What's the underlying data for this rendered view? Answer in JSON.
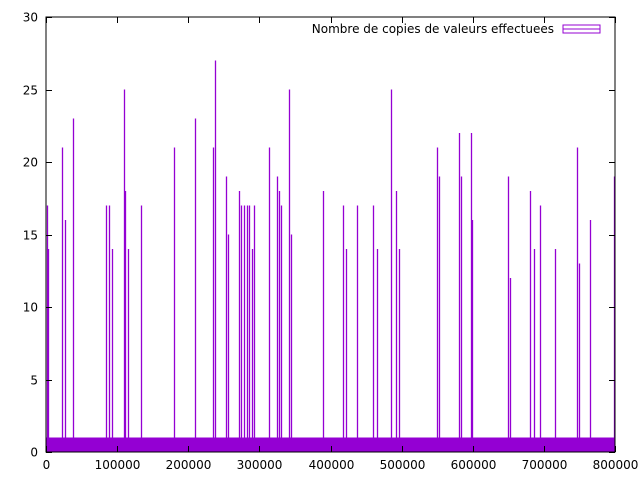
{
  "chart_data": {
    "type": "impulse",
    "title": "",
    "xlabel": "",
    "ylabel": "",
    "xlim": [
      0,
      800000
    ],
    "ylim": [
      0,
      30
    ],
    "x_ticks": [
      0,
      100000,
      200000,
      300000,
      400000,
      500000,
      600000,
      700000,
      800000
    ],
    "y_ticks": [
      0,
      5,
      10,
      15,
      20,
      25,
      30
    ],
    "grid": false,
    "legend_position": "top-right",
    "series": [
      {
        "name": "Nombre de copies de valeurs effectuees",
        "color": "#9400d3",
        "baseline_value": 1,
        "x": [
          1000,
          2500,
          22000,
          27000,
          38000,
          85000,
          88000,
          93000,
          109000,
          111000,
          115000,
          133000,
          180000,
          210000,
          235000,
          238000,
          253000,
          256000,
          271000,
          274000,
          278000,
          282000,
          285000,
          290000,
          293000,
          313000,
          325000,
          327000,
          330000,
          342000,
          344000,
          390000,
          418000,
          422000,
          437000,
          460000,
          465000,
          485000,
          492000,
          497000,
          550000,
          553000,
          580000,
          583000,
          597000,
          599000,
          650000,
          653000,
          680000,
          686000,
          695000,
          715000,
          747000,
          750000,
          765000,
          799000
        ],
        "y": [
          17,
          14,
          21,
          16,
          23,
          17,
          17,
          14,
          25,
          18,
          14,
          17,
          21,
          23,
          21,
          27,
          19,
          15,
          18,
          17,
          17,
          17,
          17,
          14,
          17,
          21,
          19,
          18,
          17,
          25,
          15,
          18,
          17,
          14,
          17,
          17,
          14,
          25,
          18,
          14,
          21,
          19,
          22,
          19,
          22,
          16,
          19,
          12,
          18,
          14,
          17,
          14,
          21,
          13,
          16,
          19
        ]
      }
    ]
  }
}
